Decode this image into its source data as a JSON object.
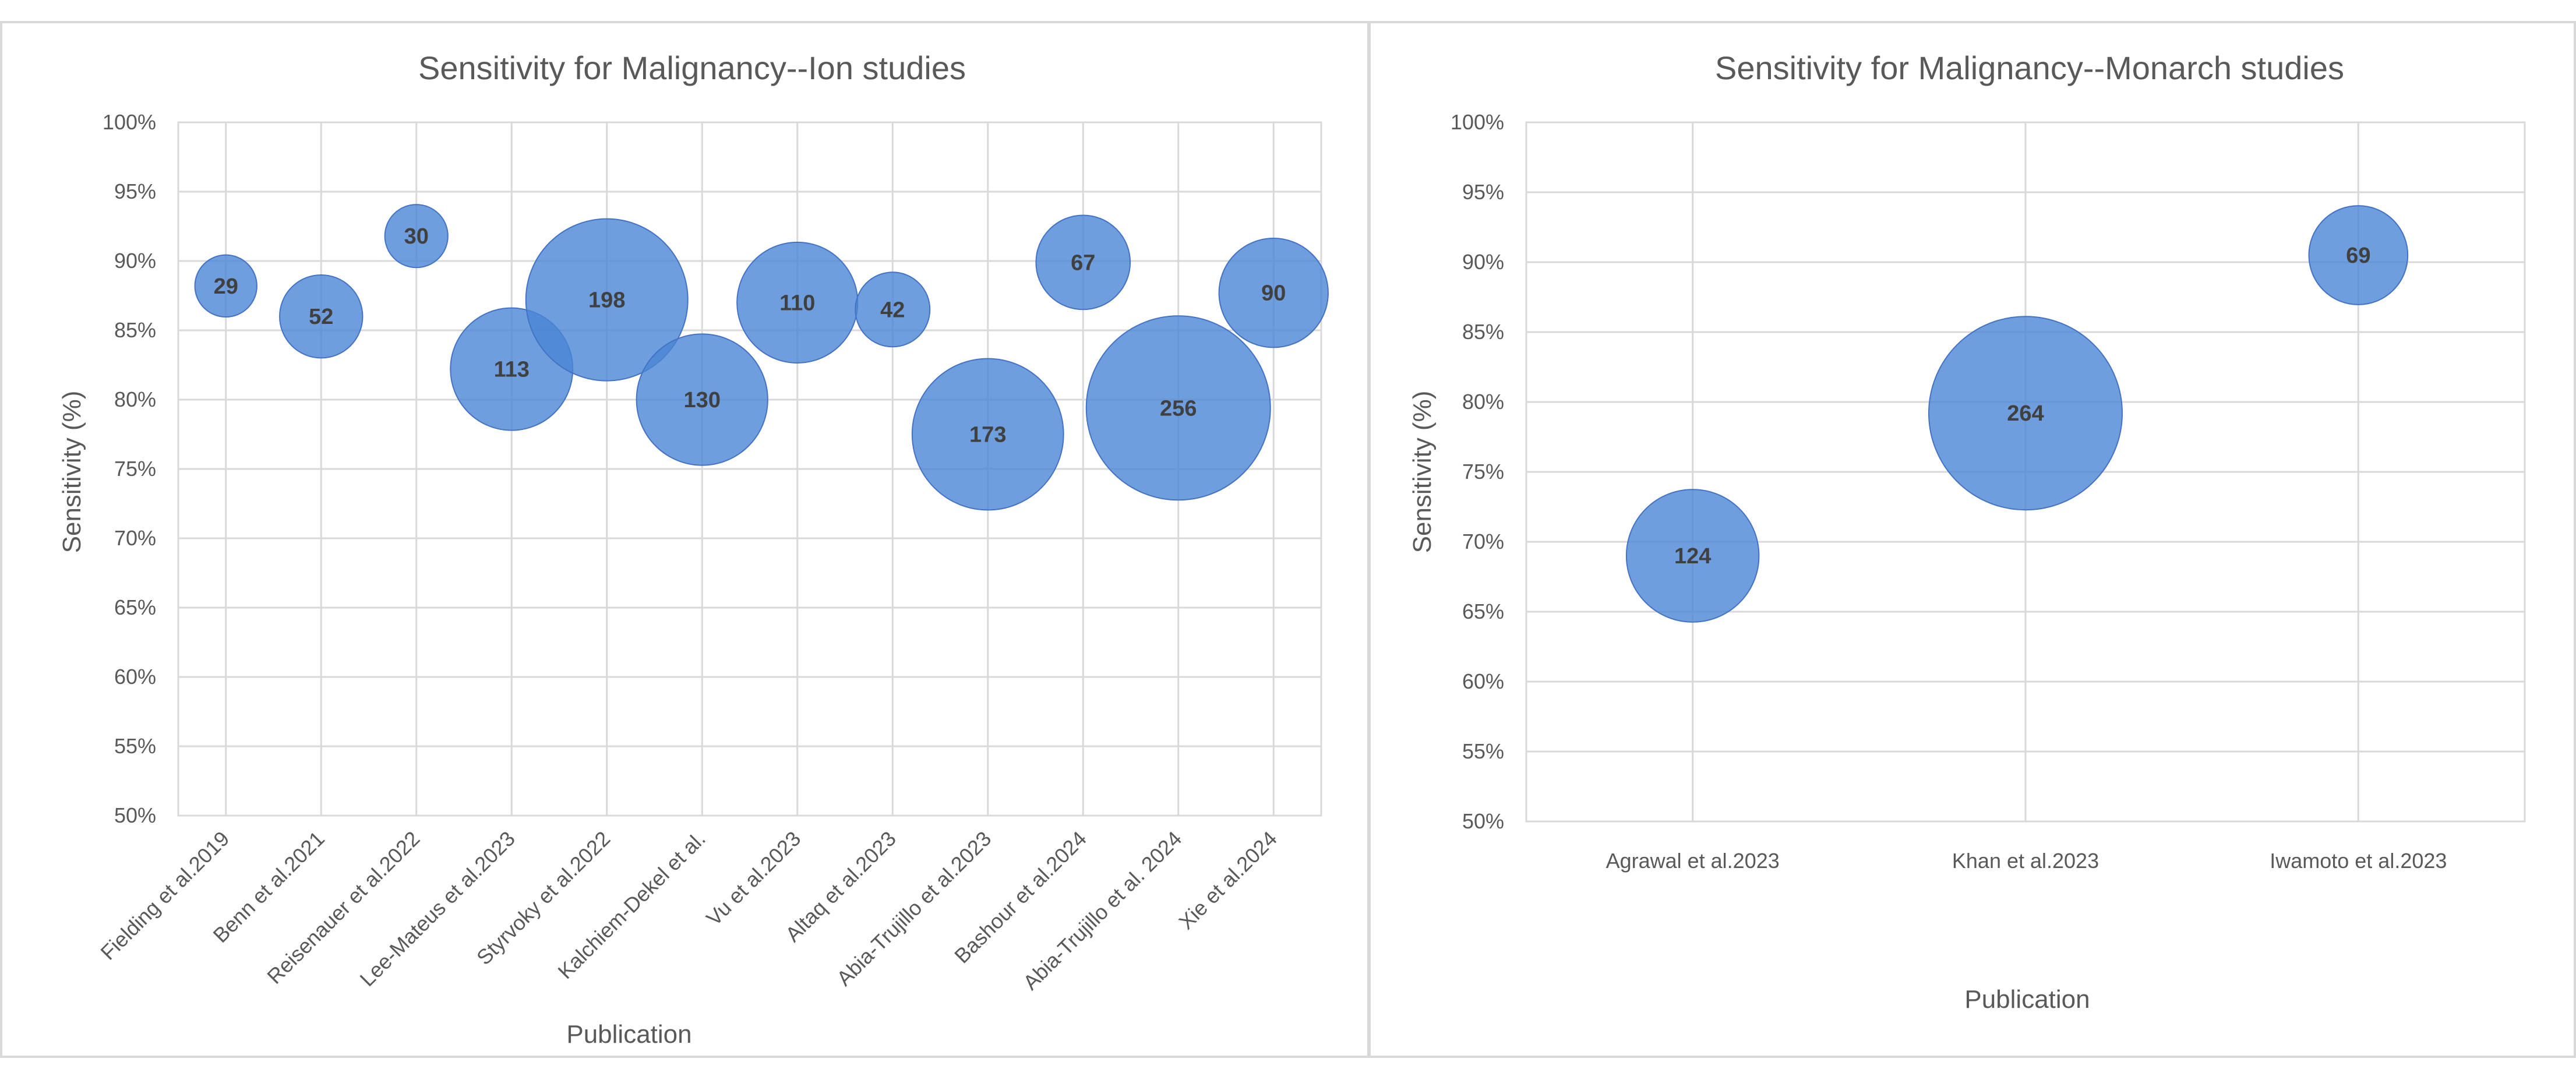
{
  "chart_data": [
    {
      "type": "bubble",
      "title": "Sensitivity for Malignancy--Ion studies",
      "xlabel": "Publication",
      "ylabel": "Sensitivity (%)",
      "ylim": [
        50,
        100
      ],
      "ytick_step": 5,
      "ytick_suffix": "%",
      "grid": true,
      "bubble_color": "#4a86d4",
      "categories": [
        "Fielding et al.2019",
        "Benn et al.2021",
        "Reisenauer et al.2022",
        "Lee-Mateus et al.2023",
        "Styrvoky et al.2022",
        "Kalchiem-Dekel et al.",
        "Vu et al.2023",
        "Altaq et al.2023",
        "Abia-Trujillo et al.2023",
        "Bashour et al.2024",
        "Abia-Trujillo et al. 2024",
        "Xie et al.2024"
      ],
      "values": [
        88.2,
        86.0,
        91.8,
        82.2,
        87.2,
        80.0,
        87.0,
        86.5,
        77.5,
        89.9,
        79.4,
        87.7
      ],
      "sizes": [
        29,
        52,
        30,
        113,
        198,
        130,
        110,
        42,
        173,
        67,
        256,
        90
      ]
    },
    {
      "type": "bubble",
      "title": "Sensitivity for Malignancy--Monarch studies",
      "xlabel": "Publication",
      "ylabel": "Sensitivity (%)",
      "ylim": [
        50,
        100
      ],
      "ytick_step": 5,
      "ytick_suffix": "%",
      "grid": true,
      "bubble_color": "#4a86d4",
      "categories": [
        "Agrawal et al.2023",
        "Khan et al.2023",
        "Iwamoto et al.2023"
      ],
      "values": [
        69.0,
        79.2,
        90.5
      ],
      "sizes": [
        124,
        264,
        69
      ]
    }
  ]
}
